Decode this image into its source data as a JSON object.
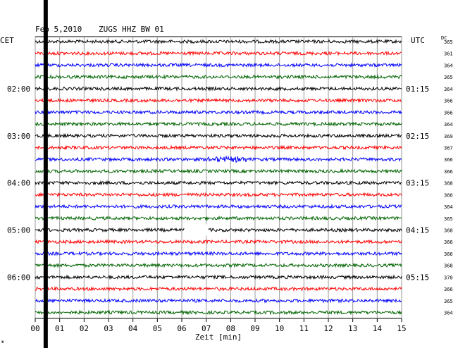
{
  "header": {
    "date": "Feb 5,2010",
    "station": "ZUGS HHZ BW 01",
    "left_tz": "CET",
    "right_tz": "UTC",
    "dc_label": "DC"
  },
  "chart_data": {
    "type": "line",
    "title": "Feb 5,2010   ZUGS HHZ BW 01",
    "xlabel": "Zeit [min]",
    "xlim": [
      0,
      15
    ],
    "x_ticks": [
      "00",
      "01",
      "02",
      "03",
      "04",
      "05",
      "06",
      "07",
      "08",
      "09",
      "10",
      "11",
      "12",
      "13",
      "14",
      "15"
    ],
    "trace_colors": [
      "#000000",
      "#ff0000",
      "#0000ff",
      "#006400"
    ],
    "left_time_labels": [
      {
        "trace": 4,
        "label": "02:00"
      },
      {
        "trace": 8,
        "label": "03:00"
      },
      {
        "trace": 12,
        "label": "04:00"
      },
      {
        "trace": 16,
        "label": "05:00"
      },
      {
        "trace": 20,
        "label": "06:00"
      }
    ],
    "right_time_labels": [
      {
        "trace": 4,
        "label": "01:15"
      },
      {
        "trace": 8,
        "label": "02:15"
      },
      {
        "trace": 12,
        "label": "03:15"
      },
      {
        "trace": 16,
        "label": "04:15"
      },
      {
        "trace": 20,
        "label": "05:15"
      }
    ],
    "dc_offsets": [
      "365",
      "361",
      "364",
      "365",
      "364",
      "366",
      "366",
      "364",
      "369",
      "367",
      "366",
      "366",
      "368",
      "366",
      "364",
      "365",
      "368",
      "366",
      "366",
      "368",
      "370",
      "366",
      "365",
      "364"
    ],
    "gaps": [
      {
        "trace": 16,
        "from_min": 6.1,
        "to_min": 7.1
      }
    ],
    "vertical_event_min": 0.4
  },
  "footer": {
    "corner_mark": "ж"
  }
}
